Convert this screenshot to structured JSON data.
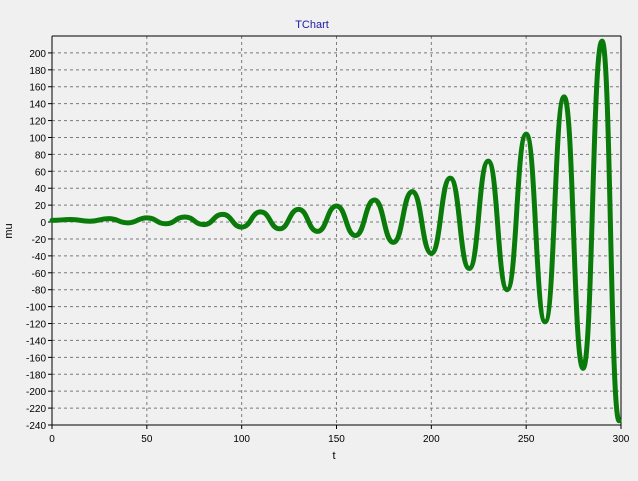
{
  "chart_data": {
    "type": "line",
    "title": "TChart",
    "xlabel": "t",
    "ylabel": "mu",
    "xlim": [
      0,
      300
    ],
    "ylim": [
      -240,
      220
    ],
    "x_ticks": [
      0,
      50,
      100,
      150,
      200,
      250,
      300
    ],
    "y_ticks": [
      -240,
      -220,
      -200,
      -180,
      -160,
      -140,
      -120,
      -100,
      -80,
      -60,
      -40,
      -20,
      0,
      20,
      40,
      60,
      80,
      100,
      120,
      140,
      160,
      180,
      200
    ],
    "grid": true,
    "legend": "none",
    "series": [
      {
        "color": "#0a7a0a",
        "x": [
          0,
          10,
          20,
          30,
          40,
          50,
          60,
          70,
          80,
          90,
          100,
          110,
          120,
          130,
          140,
          150,
          160,
          170,
          180,
          190,
          200,
          210,
          220,
          230,
          240,
          250,
          260,
          270,
          280,
          290,
          299
        ],
        "y": [
          2,
          3,
          1,
          4,
          -1,
          5,
          -2,
          6,
          -3,
          9,
          -6,
          12,
          -8,
          15,
          -11,
          19,
          -16,
          26,
          -24,
          36,
          -37,
          52,
          -55,
          72,
          -80,
          104,
          -118,
          148,
          -173,
          214,
          -235
        ]
      }
    ]
  }
}
